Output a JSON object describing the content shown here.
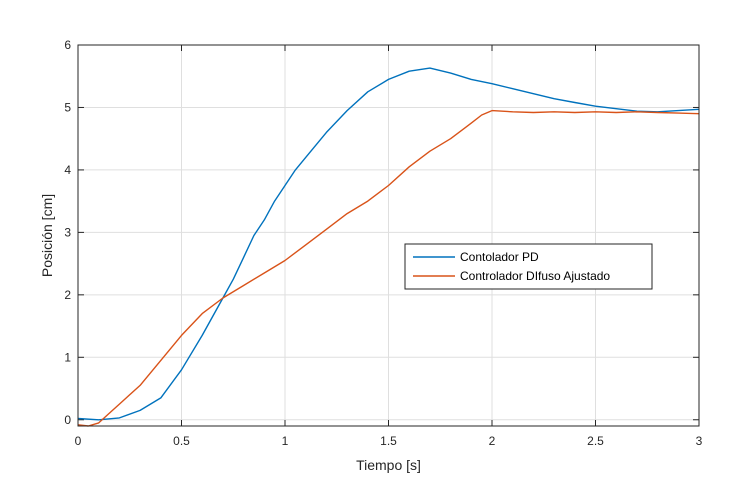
{
  "chart_data": {
    "type": "line",
    "title": "",
    "xlabel": "Tiempo [s]",
    "ylabel": "Posición [cm]",
    "xlim": [
      0,
      3
    ],
    "ylim": [
      -0.1,
      6
    ],
    "xticks": [
      0,
      0.5,
      1,
      1.5,
      2,
      2.5,
      3
    ],
    "xtick_labels": [
      "0",
      "0.5",
      "1",
      "1.5",
      "2",
      "2.5",
      "3"
    ],
    "yticks": [
      0,
      1,
      2,
      3,
      4,
      5,
      6
    ],
    "ytick_labels": [
      "0",
      "1",
      "2",
      "3",
      "4",
      "5",
      "6"
    ],
    "grid": true,
    "legend_position": "right-center",
    "series": [
      {
        "name": "Contolador PD",
        "color": "#0072BD",
        "x": [
          0,
          0.1,
          0.2,
          0.3,
          0.4,
          0.5,
          0.6,
          0.7,
          0.75,
          0.8,
          0.85,
          0.9,
          0.95,
          1.0,
          1.05,
          1.1,
          1.2,
          1.3,
          1.4,
          1.5,
          1.6,
          1.7,
          1.8,
          1.9,
          2.0,
          2.1,
          2.2,
          2.3,
          2.4,
          2.5,
          2.6,
          2.7,
          2.8,
          2.9,
          3.0
        ],
        "y": [
          0.02,
          0.0,
          0.03,
          0.15,
          0.35,
          0.8,
          1.35,
          1.95,
          2.25,
          2.6,
          2.95,
          3.2,
          3.5,
          3.75,
          4.0,
          4.2,
          4.6,
          4.95,
          5.25,
          5.45,
          5.58,
          5.63,
          5.55,
          5.45,
          5.38,
          5.3,
          5.22,
          5.14,
          5.08,
          5.02,
          4.98,
          4.94,
          4.93,
          4.95,
          4.97
        ]
      },
      {
        "name": "Controlador DIfuso Ajustado",
        "color": "#D95319",
        "x": [
          0,
          0.05,
          0.1,
          0.15,
          0.2,
          0.3,
          0.4,
          0.5,
          0.6,
          0.7,
          0.8,
          0.9,
          1.0,
          1.1,
          1.2,
          1.3,
          1.4,
          1.5,
          1.6,
          1.7,
          1.8,
          1.9,
          1.95,
          2.0,
          2.1,
          2.2,
          2.3,
          2.4,
          2.5,
          2.6,
          2.7,
          2.8,
          2.9,
          3.0
        ],
        "y": [
          -0.08,
          -0.1,
          -0.05,
          0.1,
          0.25,
          0.55,
          0.95,
          1.35,
          1.7,
          1.95,
          2.15,
          2.35,
          2.55,
          2.8,
          3.05,
          3.3,
          3.5,
          3.75,
          4.05,
          4.3,
          4.5,
          4.75,
          4.88,
          4.95,
          4.93,
          4.92,
          4.93,
          4.92,
          4.93,
          4.92,
          4.93,
          4.92,
          4.91,
          4.9
        ]
      }
    ]
  }
}
